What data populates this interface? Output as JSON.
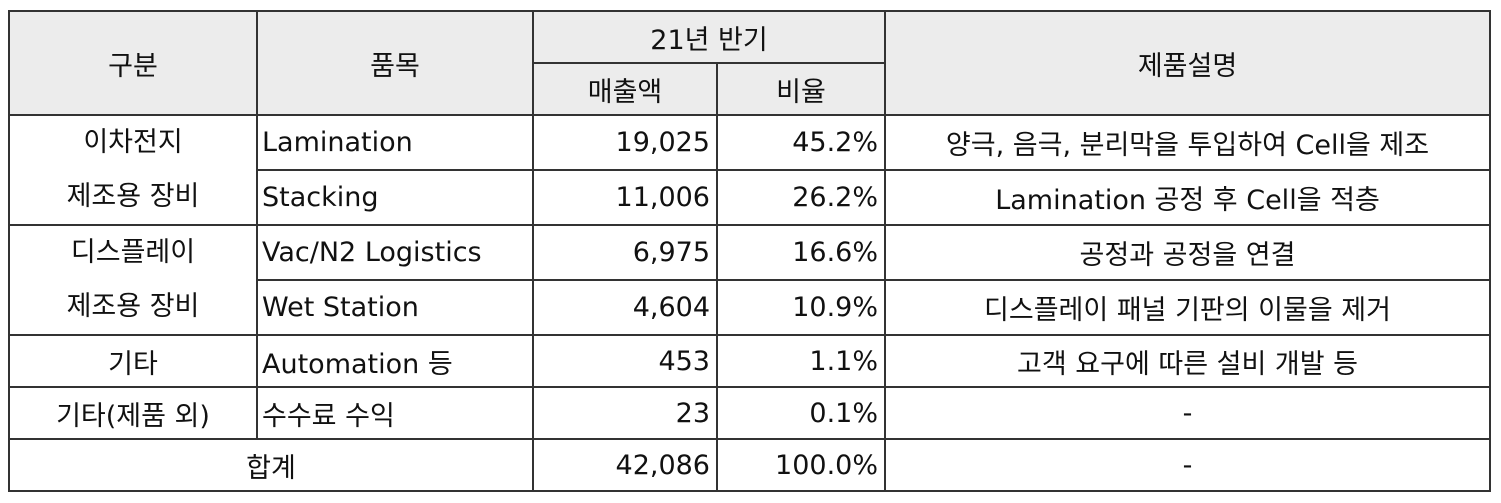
{
  "header": {
    "category": "구분",
    "item": "품목",
    "period": "21년 반기",
    "sales": "매출액",
    "ratio": "비율",
    "description": "제품설명"
  },
  "groups": [
    {
      "label_line1": "이차전지",
      "label_line2": "제조용 장비"
    },
    {
      "label_line1": "디스플레이",
      "label_line2": "제조용 장비"
    },
    {
      "label_line1": "기타"
    },
    {
      "label_line1": "기타(제품 외)"
    }
  ],
  "rows": [
    {
      "item": "Lamination",
      "sales": "19,025",
      "ratio": "45.2%",
      "description": "양극, 음극, 분리막을 투입하여 Cell을 제조"
    },
    {
      "item": "Stacking",
      "sales": "11,006",
      "ratio": "26.2%",
      "description": "Lamination 공정 후 Cell을 적층"
    },
    {
      "item": "Vac/N2 Logistics",
      "sales": "6,975",
      "ratio": "16.6%",
      "description": "공정과 공정을 연결"
    },
    {
      "item": "Wet Station",
      "sales": "4,604",
      "ratio": "10.9%",
      "description": "디스플레이 패널 기판의 이물을 제거"
    },
    {
      "item": "Automation 등",
      "sales": "453",
      "ratio": "1.1%",
      "description": "고객 요구에 따른 설비 개발 등"
    },
    {
      "item": "수수료 수익",
      "sales": "23",
      "ratio": "0.1%",
      "description": "-"
    }
  ],
  "total": {
    "label": "합계",
    "sales": "42,086",
    "ratio": "100.0%",
    "description": "-"
  }
}
